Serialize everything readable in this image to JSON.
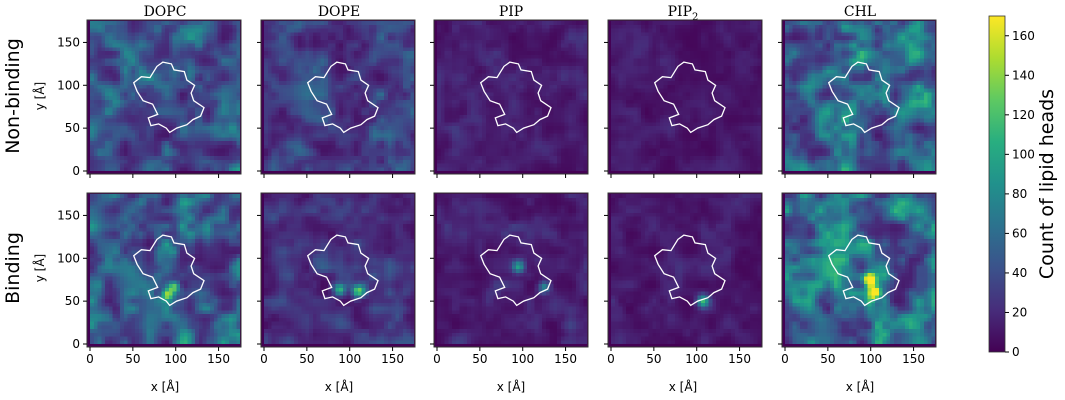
{
  "chart_data": {
    "type": "heatmap",
    "columns": [
      "DOPC",
      "DOPE",
      "PIP",
      "PIP",
      "CHL"
    ],
    "column_subscripts": [
      "",
      "",
      "",
      "2",
      ""
    ],
    "rows": [
      "Non-binding",
      "Binding"
    ],
    "xlabel": "x [Å]",
    "ylabel": "y [Å]",
    "xlim": [
      0,
      175
    ],
    "ylim": [
      0,
      175
    ],
    "ticks": [
      "0",
      "50",
      "100",
      "150"
    ],
    "tick_values": [
      0,
      50,
      100,
      150
    ],
    "colorbar": {
      "label": "Count of lipid heads",
      "range": [
        0,
        170
      ],
      "ticks": [
        "0",
        "20",
        "40",
        "60",
        "80",
        "100",
        "120",
        "140",
        "160"
      ],
      "tick_values": [
        0,
        20,
        40,
        60,
        80,
        100,
        120,
        140,
        160
      ],
      "colormap": "viridis"
    },
    "mean_counts": {
      "Non-binding": [
        58,
        40,
        18,
        14,
        75
      ],
      "Binding": [
        62,
        30,
        20,
        16,
        72
      ]
    },
    "hotspots": {
      "Binding": [
        [
          {
            "x": 90,
            "y": 58,
            "value": 120
          },
          {
            "x": 98,
            "y": 66,
            "value": 100
          }
        ],
        [
          {
            "x": 110,
            "y": 62,
            "value": 110
          },
          {
            "x": 88,
            "y": 64,
            "value": 90
          }
        ],
        [
          {
            "x": 95,
            "y": 90,
            "value": 85
          },
          {
            "x": 125,
            "y": 66,
            "value": 70
          }
        ],
        [
          {
            "x": 107,
            "y": 50,
            "value": 95
          }
        ],
        [
          {
            "x": 99,
            "y": 75,
            "value": 160
          },
          {
            "x": 103,
            "y": 60,
            "value": 150
          }
        ]
      ]
    },
    "protein_outline": [
      [
        85,
        127
      ],
      [
        95,
        125
      ],
      [
        98,
        118
      ],
      [
        110,
        116
      ],
      [
        113,
        106
      ],
      [
        122,
        100
      ],
      [
        118,
        91
      ],
      [
        121,
        82
      ],
      [
        133,
        74
      ],
      [
        129,
        64
      ],
      [
        120,
        60
      ],
      [
        113,
        54
      ],
      [
        101,
        50
      ],
      [
        93,
        45
      ],
      [
        89,
        50
      ],
      [
        80,
        55
      ],
      [
        71,
        53
      ],
      [
        68,
        62
      ],
      [
        79,
        66
      ],
      [
        73,
        78
      ],
      [
        62,
        82
      ],
      [
        55,
        93
      ],
      [
        51,
        103
      ],
      [
        60,
        110
      ],
      [
        70,
        109
      ],
      [
        78,
        122
      ]
    ],
    "colors": {
      "outline": "#ffffff",
      "frame": "#333333",
      "background": "#ffffff"
    }
  }
}
